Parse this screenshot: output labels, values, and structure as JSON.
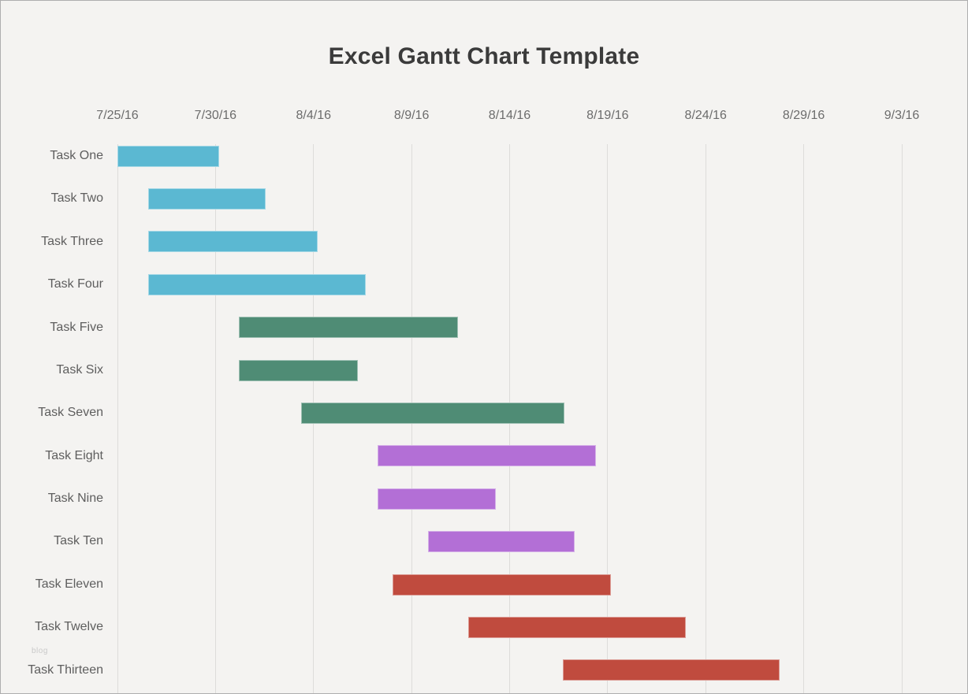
{
  "page": {
    "background": "#f4f3f1",
    "border_color": "#aeaeae"
  },
  "watermark": "blog",
  "chart_data": {
    "type": "bar",
    "subtype": "gantt",
    "title": "Excel Gantt Chart Template",
    "title_color": "#3b3b3b",
    "legend": false,
    "x_axis": {
      "tick_labels": [
        "7/25/16",
        "7/30/16",
        "8/4/16",
        "8/9/16",
        "8/14/16",
        "8/19/16",
        "8/24/16",
        "8/29/16",
        "9/3/16"
      ],
      "interval_days": 5,
      "range_days": [
        0,
        40
      ],
      "gridlines": true,
      "gridline_color": "#dddcda",
      "tick_color": "#6c6c6c"
    },
    "y_axis": {
      "label_color": "#5e5e5e"
    },
    "series_colors": {
      "blue": "#5bb8d2",
      "green": "#4f8c75",
      "purple": "#b36fd6",
      "red": "#c04b3e"
    },
    "tasks": [
      {
        "label": "Task One",
        "start_day": 0.0,
        "end_day": 5.2,
        "series": "blue"
      },
      {
        "label": "Task Two",
        "start_day": 1.55,
        "end_day": 7.55,
        "series": "blue"
      },
      {
        "label": "Task Three",
        "start_day": 1.55,
        "end_day": 10.2,
        "series": "blue"
      },
      {
        "label": "Task Four",
        "start_day": 1.55,
        "end_day": 12.65,
        "series": "blue"
      },
      {
        "label": "Task Five",
        "start_day": 6.2,
        "end_day": 17.35,
        "series": "green"
      },
      {
        "label": "Task Six",
        "start_day": 6.2,
        "end_day": 12.25,
        "series": "green"
      },
      {
        "label": "Task Seven",
        "start_day": 9.35,
        "end_day": 22.8,
        "series": "green"
      },
      {
        "label": "Task Eight",
        "start_day": 13.25,
        "end_day": 24.4,
        "series": "purple"
      },
      {
        "label": "Task Nine",
        "start_day": 13.25,
        "end_day": 19.3,
        "series": "purple"
      },
      {
        "label": "Task Ten",
        "start_day": 15.85,
        "end_day": 23.3,
        "series": "purple"
      },
      {
        "label": "Task Eleven",
        "start_day": 14.05,
        "end_day": 25.15,
        "series": "red"
      },
      {
        "label": "Task Twelve",
        "start_day": 17.9,
        "end_day": 29.0,
        "series": "red"
      },
      {
        "label": "Task Thirteen",
        "start_day": 22.7,
        "end_day": 33.75,
        "series": "red"
      }
    ]
  }
}
